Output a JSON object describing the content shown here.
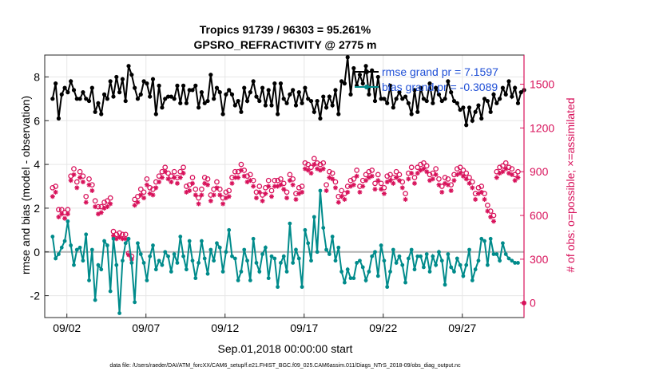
{
  "chart_data": {
    "type": "line",
    "title_line1": "Tropics 91739 / 96303 = 95.261%",
    "title_line2": "GPSRO_REFRACTIVITY @ 2775 m",
    "xlabel": "Sep.01,2018 00:00:00 start",
    "ylabel_left": "rmse and bias (model - observation)",
    "ylabel_right": "# of obs: o=possible; ×=assimilated",
    "footer": "data file: /Users/raeder/DAI/ATM_forcXX/CAM6_setup/f.e21.FHIST_BGC.f09_025.CAM6assim.011/Diags_NTrS_2018-09/obs_diag_output.nc",
    "xlim": [
      0.6,
      30.9
    ],
    "ylim_left": [
      -3,
      9
    ],
    "ylim_right": [
      -100,
      1700
    ],
    "x_ticks": [
      2,
      7,
      12,
      17,
      22,
      27
    ],
    "x_tick_labels": [
      "09/02",
      "09/07",
      "09/12",
      "09/17",
      "09/22",
      "09/27"
    ],
    "y_ticks_left": [
      -2,
      0,
      2,
      4,
      6,
      8
    ],
    "y_ticks_right": [
      0,
      300,
      600,
      900,
      1200,
      1500
    ],
    "legend": [
      {
        "label": "rmse grand pr = 7.1597",
        "color": "#000000"
      },
      {
        "label": "bias grand pr = -0.3089",
        "color": "#008b8b"
      }
    ],
    "colors": {
      "rmse": "#000000",
      "bias": "#008b8b",
      "obs": "#d8125b",
      "zero_line": "#b3b3b3",
      "grid": "#e6e6e6",
      "legend_text": "#1f4fd6"
    },
    "series": [
      {
        "name": "rmse",
        "axis": "left",
        "values": [
          7.0,
          7.7,
          6.1,
          7.2,
          7.5,
          7.3,
          7.8,
          7.4,
          7.0,
          7.0,
          7.3,
          7.0,
          6.9,
          7.5,
          6.4,
          6.8,
          6.3,
          7.2,
          7.0,
          7.8,
          7.1,
          8.0,
          7.3,
          7.9,
          6.9,
          8.5,
          8.1,
          7.5,
          7.0,
          7.2,
          7.8,
          7.7,
          7.1,
          7.9,
          6.3,
          7.6,
          6.6,
          7.0,
          7.1,
          7.1,
          7.0,
          7.6,
          6.8,
          7.6,
          6.8,
          7.4,
          7.4,
          7.6,
          6.6,
          7.3,
          6.8,
          6.9,
          8.1,
          7.0,
          7.5,
          7.3,
          6.3,
          7.2,
          7.4,
          7.2,
          6.7,
          6.9,
          6.4,
          7.5,
          6.9,
          7.3,
          7.8,
          7.1,
          6.9,
          7.5,
          6.7,
          7.4,
          6.7,
          7.7,
          6.3,
          7.7,
          7.0,
          6.8,
          7.2,
          7.4,
          6.7,
          7.3,
          6.8,
          7.5,
          7.0,
          6.9,
          6.4,
          6.9,
          6.1,
          7.1,
          6.6,
          7.1,
          6.7,
          7.4,
          6.3,
          7.8,
          7.7,
          8.9,
          7.2,
          8.4,
          7.6,
          8.1,
          7.7,
          8.5,
          7.2,
          8.3,
          6.9,
          8.0,
          7.0,
          7.0,
          6.8,
          7.6,
          6.6,
          7.0,
          7.3,
          7.0,
          7.1,
          6.8,
          6.3,
          7.4,
          6.4,
          7.5,
          7.0,
          6.9,
          7.7,
          6.8,
          7.5,
          7.2,
          6.9,
          7.0,
          7.8,
          7.3,
          6.9,
          6.8,
          6.5,
          6.6,
          5.8,
          6.6,
          6.0,
          6.4,
          6.7,
          6.1,
          7.0,
          6.9,
          6.4,
          7.2,
          6.8,
          7.0,
          7.5,
          7.2,
          7.8,
          7.1,
          7.5,
          6.8,
          7.3,
          7.4
        ]
      },
      {
        "name": "bias",
        "axis": "left",
        "values": [
          0.7,
          -0.3,
          -0.1,
          0.2,
          0.5,
          1.4,
          0.3,
          -0.6,
          0.1,
          0.2,
          -0.4,
          0.8,
          -1.3,
          0.1,
          -2.2,
          -0.6,
          -0.8,
          0.5,
          0.3,
          -1.8,
          0.6,
          -0.6,
          -2.8,
          -0.4,
          0.4,
          0.6,
          -0.5,
          -2.3,
          0.4,
          -0.1,
          -0.5,
          -1.3,
          -0.2,
          0.3,
          -0.8,
          -0.4,
          -0.6,
          0.0,
          -0.2,
          -0.9,
          -0.1,
          -0.5,
          0.7,
          -0.2,
          -0.8,
          0.5,
          -0.4,
          -1.2,
          -0.5,
          0.5,
          -0.3,
          -1.0,
          0.1,
          -0.4,
          0.4,
          0.2,
          -0.9,
          0.0,
          1.0,
          -0.2,
          -0.3,
          -1.3,
          -0.9,
          0.1,
          -0.4,
          -1.3,
          0.6,
          -0.5,
          -0.9,
          -0.1,
          0.2,
          -1.2,
          -0.2,
          -0.3,
          -1.6,
          -0.5,
          -0.2,
          -0.9,
          1.3,
          -0.5,
          0.1,
          -0.3,
          -1.6,
          1.0,
          0.4,
          -0.4,
          1.6,
          0.0,
          2.8,
          1.1,
          0.1,
          -0.1,
          0.7,
          -0.4,
          0.2,
          -0.9,
          -1.4,
          -0.8,
          -1.2,
          -1.2,
          -0.5,
          -0.4,
          -0.7,
          -1.3,
          -0.9,
          -0.2,
          0.0,
          -1.1,
          0.3,
          -0.4,
          -1.6,
          -0.9,
          0.1,
          -0.5,
          -0.2,
          -0.6,
          -1.4,
          -0.3,
          0.1,
          -0.8,
          -0.2,
          -0.2,
          -0.7,
          -0.1,
          -0.9,
          -0.2,
          -0.6,
          0.0,
          -0.4,
          -1.5,
          -0.1,
          -0.7,
          -0.9,
          -0.3,
          -0.6,
          -1.1,
          -0.6,
          0.1,
          -1.3,
          -0.8,
          -0.4,
          0.6,
          0.5,
          -0.6,
          0.6,
          -0.1,
          -0.1,
          -0.4,
          0.4,
          -0.1,
          -0.3,
          -0.4,
          -0.5,
          -0.5
        ]
      },
      {
        "name": "obs_possible",
        "axis": "right",
        "values": [
          790,
          800,
          640,
          640,
          620,
          640,
          870,
          920,
          830,
          900,
          870,
          730,
          850,
          810,
          700,
          660,
          660,
          690,
          700,
          720,
          490,
          470,
          480,
          470,
          470,
          340,
          320,
          710,
          730,
          780,
          760,
          850,
          790,
          780,
          830,
          870,
          900,
          930,
          890,
          870,
          900,
          860,
          900,
          930,
          800,
          810,
          860,
          780,
          720,
          780,
          860,
          850,
          740,
          780,
          830,
          780,
          720,
          760,
          770,
          860,
          900,
          900,
          950,
          910,
          870,
          880,
          840,
          760,
          800,
          740,
          790,
          840,
          770,
          840,
          840,
          850,
          820,
          760,
          880,
          850,
          750,
          790,
          800,
          960,
          950,
          930,
          990,
          960,
          950,
          960,
          810,
          900,
          890,
          830,
          730,
          770,
          750,
          800,
          840,
          850,
          910,
          800,
          840,
          880,
          900,
          910,
          820,
          880,
          820,
          790,
          870,
          880,
          860,
          900,
          880,
          830,
          750,
          890,
          930,
          860,
          930,
          950,
          960,
          940,
          880,
          890,
          920,
          850,
          800,
          860,
          850,
          810,
          880,
          920,
          930,
          910,
          890,
          860,
          830,
          750,
          790,
          800,
          750,
          670,
          630,
          600,
          900,
          930,
          940,
          960,
          930,
          920,
          880,
          900
        ]
      },
      {
        "name": "obs_assimilated",
        "axis": "right",
        "values": [
          730,
          760,
          590,
          610,
          580,
          610,
          840,
          880,
          790,
          860,
          830,
          690,
          810,
          770,
          660,
          610,
          620,
          650,
          660,
          680,
          460,
          440,
          450,
          440,
          440,
          330,
          300,
          670,
          690,
          740,
          720,
          810,
          750,
          740,
          790,
          830,
          860,
          900,
          850,
          830,
          860,
          820,
          860,
          890,
          760,
          770,
          820,
          740,
          680,
          740,
          820,
          810,
          700,
          740,
          790,
          740,
          680,
          720,
          730,
          820,
          860,
          860,
          910,
          870,
          830,
          840,
          800,
          720,
          760,
          700,
          750,
          800,
          730,
          800,
          800,
          810,
          780,
          720,
          840,
          810,
          710,
          750,
          760,
          920,
          910,
          890,
          950,
          920,
          910,
          920,
          770,
          860,
          850,
          790,
          690,
          730,
          710,
          760,
          800,
          810,
          870,
          760,
          800,
          840,
          860,
          870,
          780,
          840,
          780,
          750,
          830,
          840,
          820,
          860,
          840,
          790,
          710,
          850,
          890,
          820,
          890,
          910,
          920,
          900,
          840,
          850,
          880,
          810,
          760,
          820,
          810,
          770,
          840,
          880,
          890,
          870,
          850,
          820,
          790,
          710,
          750,
          760,
          710,
          630,
          590,
          560,
          860,
          890,
          900,
          920,
          890,
          880,
          840,
          860
        ]
      }
    ]
  }
}
